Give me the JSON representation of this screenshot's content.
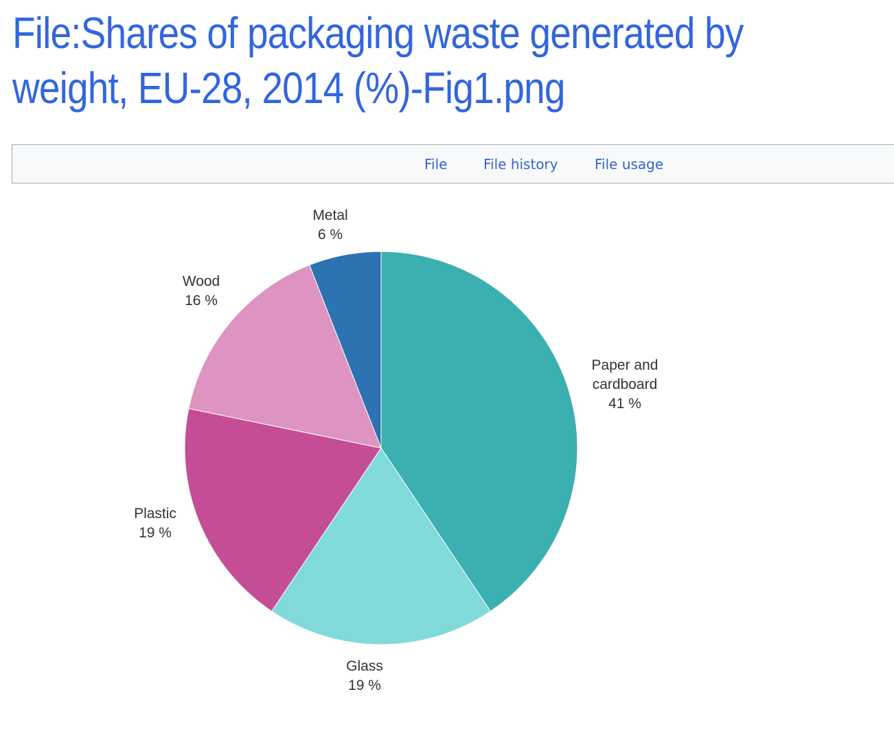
{
  "page": {
    "title": "File:Shares of packaging waste generated by weight, EU-28, 2014 (%)-Fig1.png"
  },
  "tabs": [
    {
      "label": "File"
    },
    {
      "label": "File history"
    },
    {
      "label": "File usage"
    }
  ],
  "colors": {
    "title": "#3366dd",
    "link": "#3366cc",
    "tab_bar_bg": "#f8f9fa",
    "tab_bar_border": "#a2a9b1"
  },
  "chart_data": {
    "type": "pie",
    "unit": "%",
    "slices": [
      {
        "name": "Paper and cardboard",
        "label_lines": [
          "Paper and",
          "cardboard"
        ],
        "value": 41,
        "value_label": "41 %",
        "color": "#3bb0b0"
      },
      {
        "name": "Glass",
        "label_lines": [
          "Glass"
        ],
        "value": 19,
        "value_label": "19 %",
        "color": "#80dada"
      },
      {
        "name": "Plastic",
        "label_lines": [
          "Plastic"
        ],
        "value": 19,
        "value_label": "19 %",
        "color": "#c54d95"
      },
      {
        "name": "Wood",
        "label_lines": [
          "Wood"
        ],
        "value": 16,
        "value_label": "16 %",
        "color": "#dd94c0"
      },
      {
        "name": "Metal",
        "label_lines": [
          "Metal"
        ],
        "value": 6,
        "value_label": "6 %",
        "color": "#2d72b1"
      }
    ]
  }
}
